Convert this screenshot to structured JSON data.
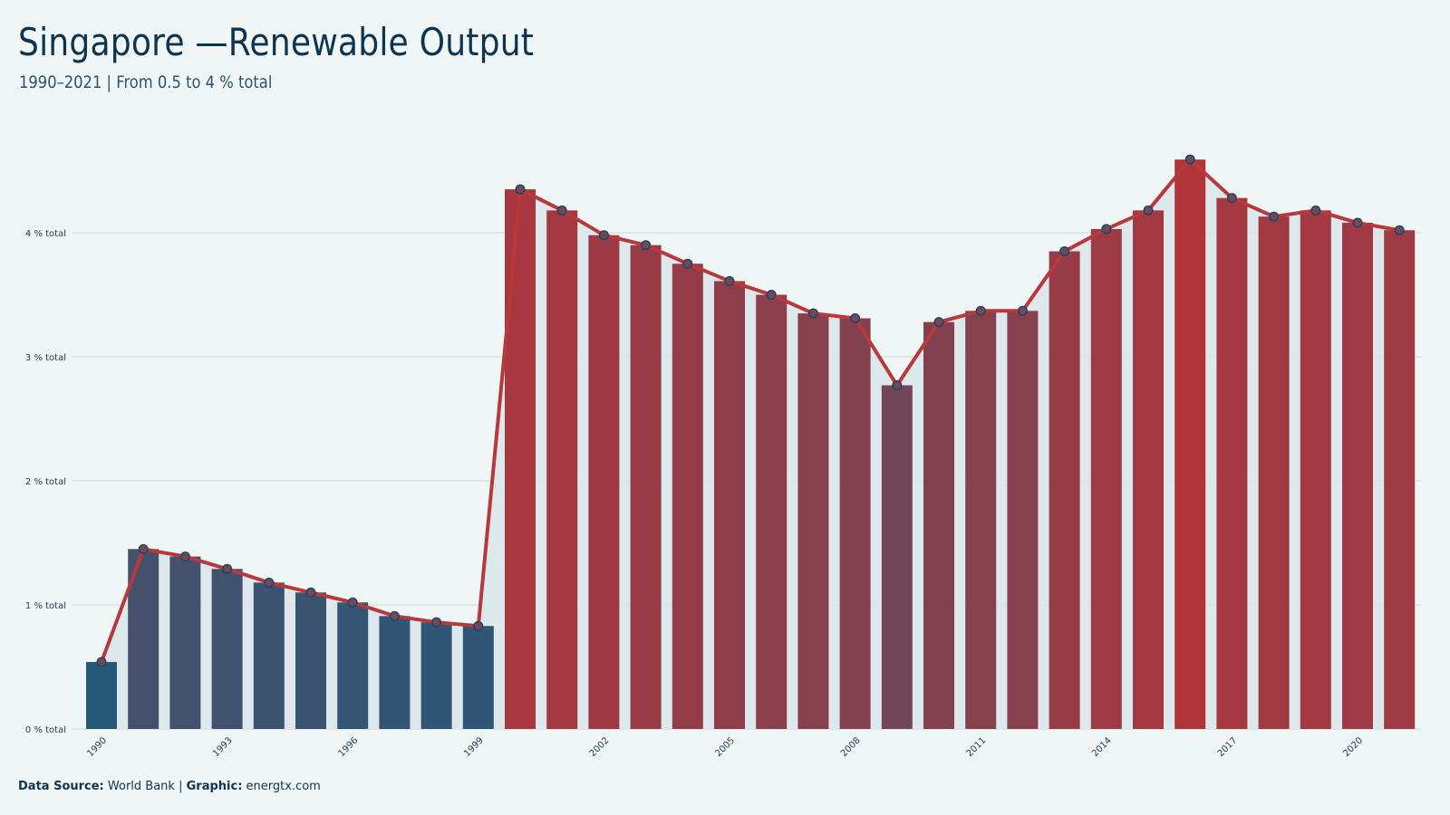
{
  "header": {
    "title": "Singapore —Renewable Output",
    "subtitle": "1990–2021 | From 0.5 to 4 % total"
  },
  "footer": {
    "source_label": "Data Source:",
    "source_value": "World Bank",
    "separator": "|",
    "graphic_label": "Graphic:",
    "graphic_value": "energtx.com"
  },
  "colors": {
    "low": "#26587a",
    "high": "#b0353b",
    "line": "#b8393c",
    "point_fill": "#6b4a5f",
    "point_stroke": "#23435c",
    "area": "#d9e5ea",
    "grid": "#c9d6da"
  },
  "chart_data": {
    "type": "bar",
    "title": "Singapore —Renewable Output",
    "subtitle": "1990–2021 | From 0.5 to 4 % total",
    "ylim": [
      0,
      4.8
    ],
    "y_ticks": [
      0,
      1,
      2,
      3,
      4
    ],
    "y_tick_labels": [
      "0 % total",
      "1 % total",
      "2 % total",
      "3 % total",
      "4 % total"
    ],
    "x_tick_labels": [
      "1990",
      "1993",
      "1996",
      "1999",
      "2002",
      "2005",
      "2008",
      "2011",
      "2014",
      "2017",
      "2020"
    ],
    "grid": true,
    "categories": [
      1990,
      1991,
      1992,
      1993,
      1994,
      1995,
      1996,
      1997,
      1998,
      1999,
      2000,
      2001,
      2002,
      2003,
      2004,
      2005,
      2006,
      2007,
      2008,
      2009,
      2010,
      2011,
      2012,
      2013,
      2014,
      2015,
      2016,
      2017,
      2018,
      2019,
      2020,
      2021
    ],
    "values": [
      0.54,
      1.45,
      1.39,
      1.29,
      1.18,
      1.1,
      1.02,
      0.91,
      0.86,
      0.83,
      4.35,
      4.18,
      3.98,
      3.9,
      3.75,
      3.61,
      3.5,
      3.35,
      3.31,
      2.77,
      3.28,
      3.37,
      3.37,
      3.85,
      4.03,
      4.18,
      4.59,
      4.28,
      4.13,
      4.18,
      4.08,
      4.02
    ],
    "series": [
      {
        "type": "bar",
        "values": [
          0.54,
          1.45,
          1.39,
          1.29,
          1.18,
          1.1,
          1.02,
          0.91,
          0.86,
          0.83,
          4.35,
          4.18,
          3.98,
          3.9,
          3.75,
          3.61,
          3.5,
          3.35,
          3.31,
          2.77,
          3.28,
          3.37,
          3.37,
          3.85,
          4.03,
          4.18,
          4.59,
          4.28,
          4.13,
          4.18,
          4.08,
          4.02
        ]
      },
      {
        "type": "line",
        "values": [
          0.54,
          1.45,
          1.39,
          1.29,
          1.18,
          1.1,
          1.02,
          0.91,
          0.86,
          0.83,
          4.35,
          4.18,
          3.98,
          3.9,
          3.75,
          3.61,
          3.5,
          3.35,
          3.31,
          2.77,
          3.28,
          3.37,
          3.37,
          3.85,
          4.03,
          4.18,
          4.59,
          4.28,
          4.13,
          4.18,
          4.08,
          4.02
        ]
      }
    ]
  }
}
